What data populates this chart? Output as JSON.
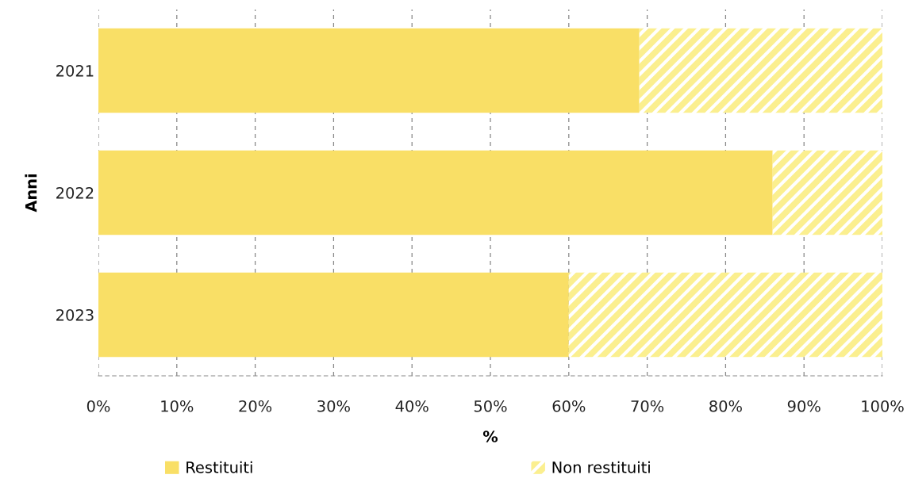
{
  "chart_data": {
    "type": "bar",
    "orientation": "horizontal",
    "stacked": true,
    "xlabel": "%",
    "ylabel": "Anni",
    "categories": [
      "2021",
      "2022",
      "2023"
    ],
    "series": [
      {
        "name": "Restituiti",
        "color": "#f9df66",
        "values": [
          69,
          86,
          60
        ]
      },
      {
        "name": "Non restituiti",
        "color": "#fbef8f",
        "values": [
          31,
          14,
          40
        ]
      }
    ],
    "xlim": [
      0,
      100
    ],
    "xticks": [
      {
        "value": 0,
        "label": "0%"
      },
      {
        "value": 10,
        "label": "10%"
      },
      {
        "value": 20,
        "label": "20%"
      },
      {
        "value": 30,
        "label": "30%"
      },
      {
        "value": 40,
        "label": "40%"
      },
      {
        "value": 50,
        "label": "50%"
      },
      {
        "value": 60,
        "label": "60%"
      },
      {
        "value": 70,
        "label": "70%"
      },
      {
        "value": 80,
        "label": "80%"
      },
      {
        "value": 90,
        "label": "90%"
      },
      {
        "value": 100,
        "label": "100%"
      }
    ],
    "grid": "x",
    "legend": "bottom"
  }
}
